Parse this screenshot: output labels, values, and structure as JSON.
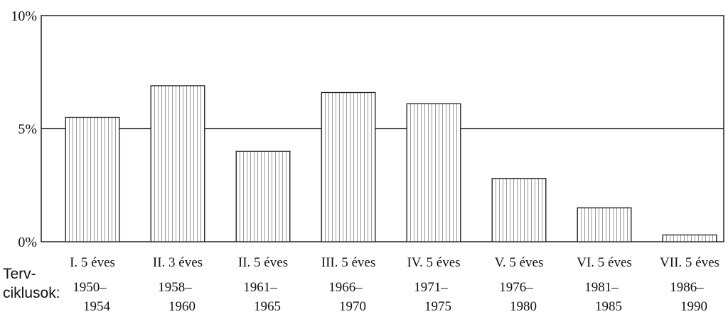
{
  "chart_data": {
    "type": "bar",
    "title": "",
    "xlabel": "Terv-ciklusok:",
    "ylabel": "",
    "ylim": [
      0,
      10
    ],
    "yticks": [
      "0%",
      "5%",
      "10%"
    ],
    "grid": false,
    "reference_line": 5,
    "row_label_lines": [
      "Terv-",
      "ciklusok:"
    ],
    "categories": [
      {
        "name": "I. 5 éves",
        "years_top": "1950–",
        "years_bottom": "1954"
      },
      {
        "name": "II. 3 éves",
        "years_top": "1958–",
        "years_bottom": "1960"
      },
      {
        "name": "II. 5 éves",
        "years_top": "1961–",
        "years_bottom": "1965"
      },
      {
        "name": "III. 5 éves",
        "years_top": "1966–",
        "years_bottom": "1970"
      },
      {
        "name": "IV. 5 éves",
        "years_top": "1971–",
        "years_bottom": "1975"
      },
      {
        "name": "V. 5 éves",
        "years_top": "1976–",
        "years_bottom": "1980"
      },
      {
        "name": "VI. 5 éves",
        "years_top": "1981–",
        "years_bottom": "1985"
      },
      {
        "name": "VII. 5 éves",
        "years_top": "1986–",
        "years_bottom": "1990"
      }
    ],
    "values": [
      5.5,
      6.9,
      4.0,
      6.6,
      6.1,
      2.8,
      1.5,
      0.3
    ],
    "bar_fill": "#ffffff",
    "bar_stroke": "#222222",
    "hatch_color": "#9a9a9a"
  }
}
